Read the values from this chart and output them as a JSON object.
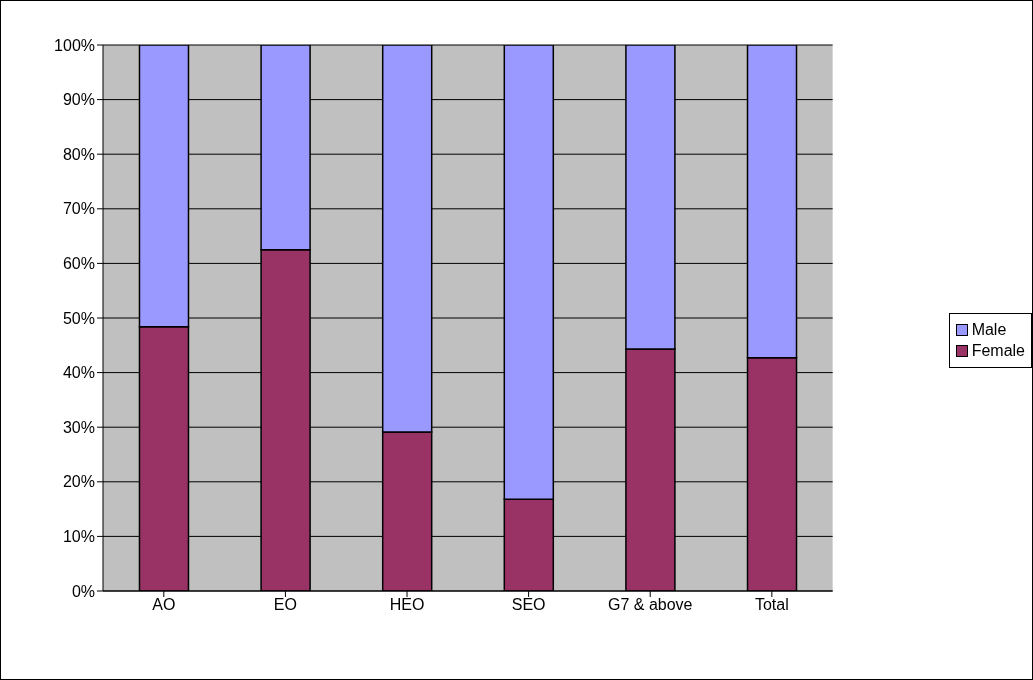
{
  "chart_data": {
    "type": "bar",
    "stacked": true,
    "categories": [
      "AO",
      "EO",
      "HEO",
      "SEO",
      "G7 & above",
      "Total"
    ],
    "series": [
      {
        "name": "Female",
        "color": "#993366",
        "values": [
          48.4,
          62.5,
          29.1,
          16.8,
          44.3,
          42.7
        ]
      },
      {
        "name": "Male",
        "color": "#9999ff",
        "values": [
          51.6,
          37.5,
          70.9,
          83.2,
          55.7,
          57.3
        ]
      }
    ],
    "ylim": [
      0,
      100
    ],
    "yticks": [
      {
        "value": 0,
        "label": "0%"
      },
      {
        "value": 10,
        "label": "10%"
      },
      {
        "value": 20,
        "label": "20%"
      },
      {
        "value": 30,
        "label": "30%"
      },
      {
        "value": 40,
        "label": "40%"
      },
      {
        "value": 50,
        "label": "50%"
      },
      {
        "value": 60,
        "label": "60%"
      },
      {
        "value": 70,
        "label": "70%"
      },
      {
        "value": 80,
        "label": "80%"
      },
      {
        "value": 90,
        "label": "90%"
      },
      {
        "value": 100,
        "label": "100%"
      }
    ],
    "grid": "y",
    "legend": "right"
  }
}
